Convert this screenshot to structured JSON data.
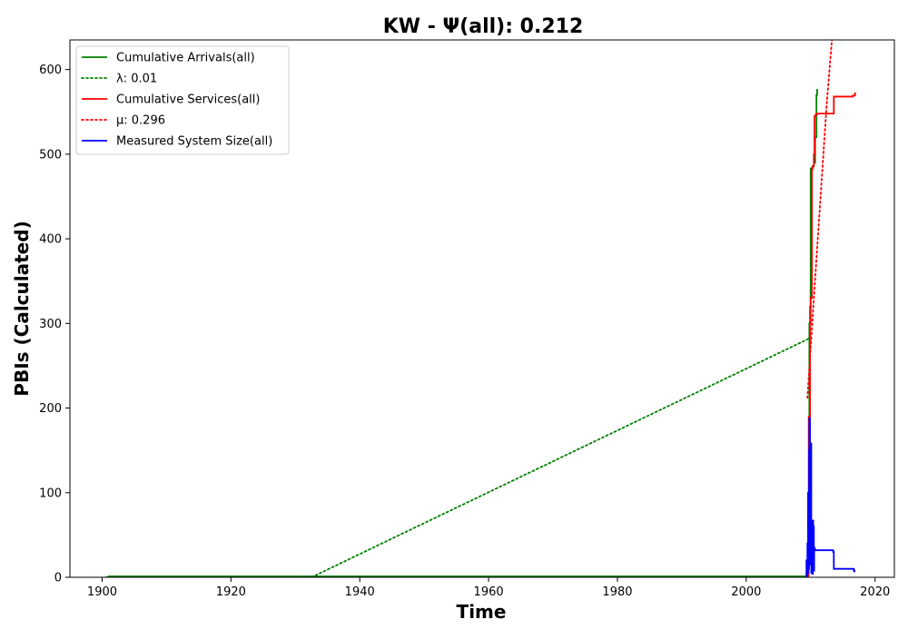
{
  "chart_data": {
    "type": "line",
    "title": "KW -  Ψ(all): 0.212",
    "xlabel": "Time",
    "ylabel": "PBIs (Calculated)",
    "xlim": [
      1895,
      2023
    ],
    "ylim": [
      0,
      635
    ],
    "x_ticks": [
      1900,
      1920,
      1940,
      1960,
      1980,
      2000,
      2020
    ],
    "y_ticks": [
      0,
      100,
      200,
      300,
      400,
      500,
      600
    ],
    "grid": false,
    "legend_position": "top-left",
    "series": [
      {
        "name": "Cumulative Arrivals(all)",
        "color": "#008000",
        "style": "solid",
        "x": [
          1900.5,
          1901,
          1960,
          2000,
          2009.3,
          2009.6,
          2009.8,
          2010.0,
          2010.2,
          2010.3,
          2010.5,
          2010.7,
          2010.9,
          2011.0
        ],
        "y": [
          0,
          1,
          1,
          1,
          2,
          80,
          300,
          483,
          484,
          486,
          490,
          520,
          570,
          577
        ]
      },
      {
        "name": "λ: 0.01",
        "color": "#008000",
        "style": "dotted",
        "x": [
          1932.5,
          1950,
          1970,
          1990,
          2010
        ],
        "y": [
          0,
          64,
          137,
          210,
          283
        ]
      },
      {
        "name": "Cumulative Services(all)",
        "color": "#ff0000",
        "style": "solid",
        "x": [
          2009.3,
          2009.6,
          2009.7,
          2009.9,
          2010.0,
          2010.2,
          2010.3,
          2010.4,
          2010.5,
          2010.6,
          2010.8,
          2011.0,
          2013.5,
          2013.6,
          2016.5,
          2016.8,
          2016.9
        ],
        "y": [
          0,
          2,
          190,
          320,
          330,
          482,
          485,
          486,
          500,
          545,
          547,
          548,
          548,
          568,
          569,
          570,
          573
        ]
      },
      {
        "name": "μ: 0.296",
        "color": "#ff0000",
        "style": "dotted",
        "x": [
          2009.5,
          2010.5,
          2011.5,
          2012.5,
          2013.3
        ],
        "y": [
          212,
          330,
          445,
          560,
          635
        ]
      },
      {
        "name": "Measured System Size(all)",
        "color": "#0000ff",
        "style": "solid",
        "x": [
          2009.3,
          2009.35,
          2009.4,
          2009.5,
          2009.55,
          2009.6,
          2009.7,
          2009.75,
          2009.8,
          2009.9,
          2009.95,
          2010.0,
          2010.05,
          2010.1,
          2010.15,
          2010.2,
          2010.25,
          2010.3,
          2010.35,
          2010.4,
          2010.45,
          2010.5,
          2010.55,
          2010.6,
          2010.7,
          2010.8,
          2013.5,
          2013.6,
          2016.7,
          2016.8
        ],
        "y": [
          0,
          20,
          2,
          40,
          5,
          100,
          10,
          150,
          188,
          60,
          15,
          20,
          158,
          5,
          30,
          12,
          60,
          4,
          67,
          10,
          60,
          8,
          35,
          33,
          32,
          32,
          30,
          10,
          8,
          6
        ]
      }
    ]
  }
}
